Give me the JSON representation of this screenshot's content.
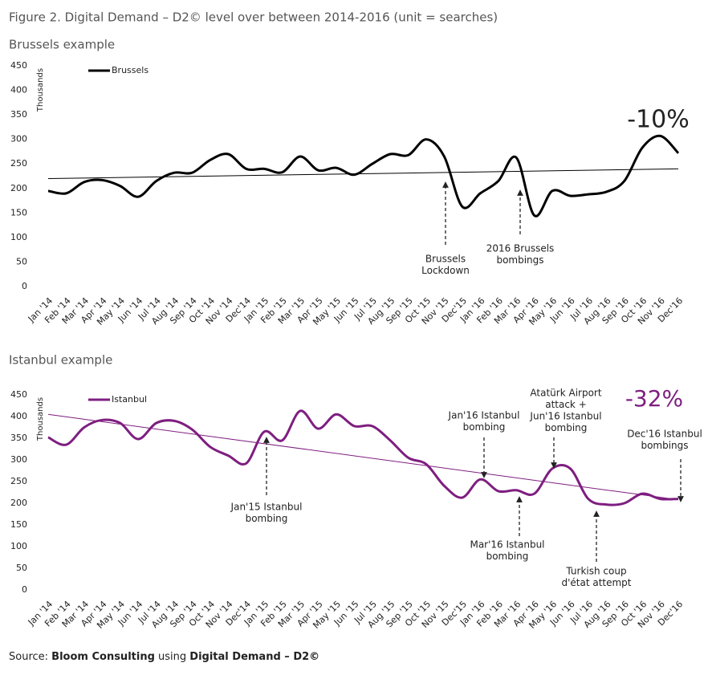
{
  "title": "Figure 2. Digital Demand – D2© level over between 2014-2016 (unit = searches)",
  "source": {
    "prefix": "Source:",
    "org": "Bloom Consulting",
    "middle": "using",
    "product": "Digital Demand – D2©"
  },
  "chart_data": [
    {
      "type": "line",
      "title": "Brussels example",
      "ylabel": "Thousands",
      "categories": [
        "Jan '14",
        "Feb '14",
        "Mar '14",
        "Apr '14",
        "May '14",
        "Jun '14",
        "Jul '14",
        "Aug '14",
        "Sep '14",
        "Oct '14",
        "Nov '14",
        "Dec'14",
        "Jan '15",
        "Feb '15",
        "Mar '15",
        "Apr '15",
        "May '15",
        "Jun '15",
        "Jul '15",
        "Aug '15",
        "Sep '15",
        "Oct '15",
        "Nov '15",
        "Dec'15",
        "Jan '16",
        "Feb '16",
        "Mar '16",
        "Apr '16",
        "May '16",
        "Jun '16",
        "Jul '16",
        "Aug '16",
        "Sep '16",
        "Oct '16",
        "Nov '16",
        "Dec'16"
      ],
      "series": [
        {
          "name": "Brussels",
          "color": "#000000",
          "values": [
            195,
            190,
            213,
            217,
            205,
            183,
            215,
            232,
            232,
            258,
            270,
            240,
            240,
            233,
            265,
            237,
            242,
            228,
            250,
            270,
            268,
            300,
            265,
            163,
            190,
            215,
            263,
            145,
            195,
            185,
            188,
            193,
            215,
            283,
            307,
            272
          ],
          "trend": [
            220,
            240
          ]
        }
      ],
      "ylim": [
        0,
        450
      ],
      "yticks": [
        0,
        50,
        100,
        150,
        200,
        250,
        300,
        350,
        400,
        450
      ],
      "legend": "upper left",
      "annotations": [
        {
          "text": [
            "-10%"
          ]
        },
        {
          "text": [
            "Brussels",
            "Lockdown"
          ]
        },
        {
          "text": [
            "2016 Brussels",
            "bombings"
          ]
        }
      ]
    },
    {
      "type": "line",
      "title": "Istanbul example",
      "ylabel": "Thousands",
      "categories": [
        "Jan '14",
        "Feb '14",
        "Mar '14",
        "Apr '14",
        "May '14",
        "Jun '14",
        "Jul '14",
        "Aug '14",
        "Sep '14",
        "Oct '14",
        "Nov '14",
        "Dec'14",
        "Jan '15",
        "Feb '15",
        "Mar '15",
        "Apr '15",
        "May '15",
        "Jun '15",
        "Jul '15",
        "Aug '15",
        "Sep '15",
        "Oct '15",
        "Nov '15",
        "Dec'15",
        "Jan '16",
        "Feb '16",
        "Mar '16",
        "Apr '16",
        "May '16",
        "Jun '16",
        "Jul '16",
        "Aug '16",
        "Sep '16",
        "Oct '16",
        "Nov '16",
        "Dec'16"
      ],
      "series": [
        {
          "name": "Istanbul",
          "color": "#7e1e80",
          "values": [
            352,
            335,
            375,
            392,
            385,
            348,
            385,
            390,
            370,
            330,
            310,
            292,
            365,
            345,
            413,
            372,
            405,
            378,
            378,
            345,
            305,
            290,
            240,
            213,
            255,
            228,
            230,
            222,
            280,
            280,
            210,
            197,
            200,
            222,
            210,
            210
          ],
          "trend": [
            405,
            208
          ]
        }
      ],
      "ylim": [
        0,
        450
      ],
      "yticks": [
        0,
        50,
        100,
        150,
        200,
        250,
        300,
        350,
        400,
        450
      ],
      "legend": "upper left",
      "annotations": [
        {
          "text": [
            "-32%"
          ]
        },
        {
          "text": [
            "Jan'15 Istanbul",
            "bombing"
          ]
        },
        {
          "text": [
            "Jan'16 Istanbul",
            "bombing"
          ]
        },
        {
          "text": [
            "Mar'16 Istanbul",
            "bombing"
          ]
        },
        {
          "text": [
            "Atatürk Airport",
            "attack +",
            "Jun'16 Istanbul",
            "bombing"
          ]
        },
        {
          "text": [
            "Turkish coup",
            "d'état attempt"
          ]
        },
        {
          "text": [
            "Dec'16 Istanbul",
            "bombings"
          ]
        }
      ]
    }
  ]
}
